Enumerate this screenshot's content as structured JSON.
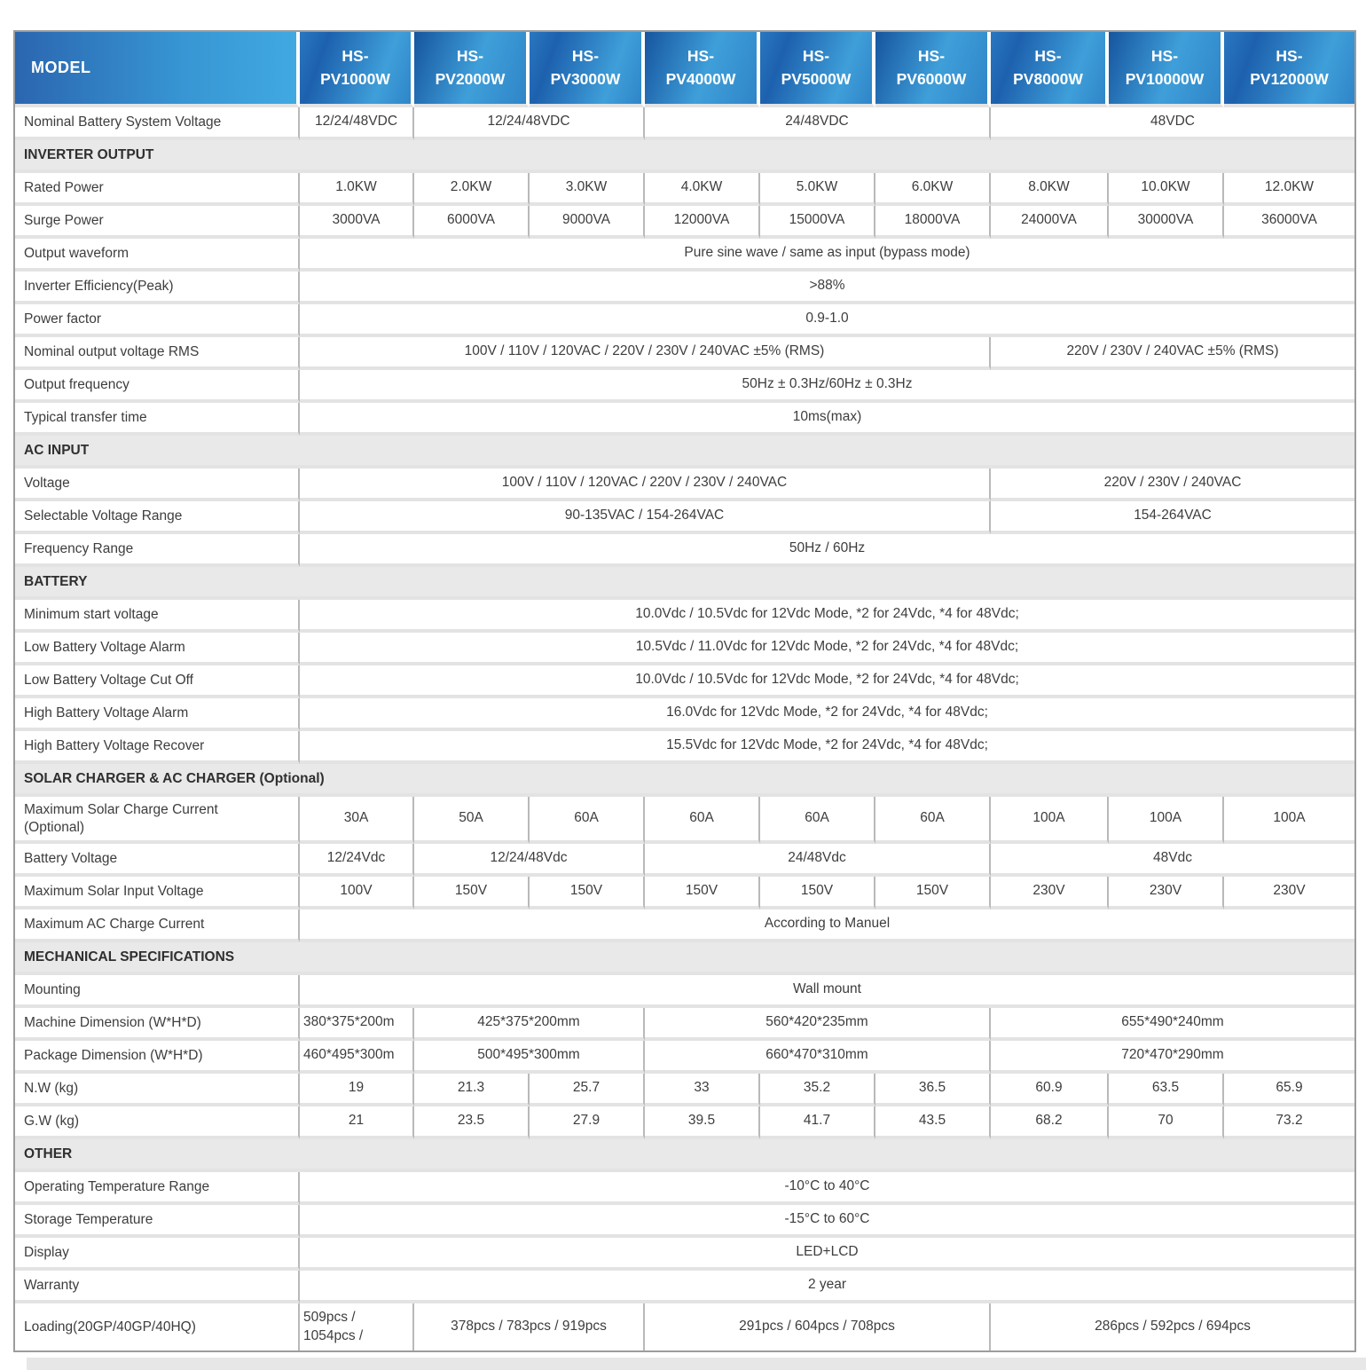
{
  "table": {
    "model_header": "MODEL",
    "models": [
      "HS-\nPV1000W",
      "HS-\nPV2000W",
      "HS-\nPV3000W",
      "HS-\nPV4000W",
      "HS-\nPV5000W",
      "HS-\nPV6000W",
      "HS-\nPV8000W",
      "HS-\nPV10000W",
      "HS-\nPV12000W"
    ],
    "rows": [
      {
        "type": "data",
        "label": "Nominal Battery System Voltage",
        "cells": [
          {
            "text": "12/24/48VDC",
            "span": 1
          },
          {
            "text": "12/24/48VDC",
            "span": 2
          },
          {
            "text": "24/48VDC",
            "span": 3
          },
          {
            "text": "48VDC",
            "span": 3
          }
        ]
      },
      {
        "type": "section",
        "label": "INVERTER OUTPUT"
      },
      {
        "type": "data",
        "label": "Rated Power",
        "cells": [
          {
            "text": "1.0KW",
            "span": 1
          },
          {
            "text": "2.0KW",
            "span": 1
          },
          {
            "text": "3.0KW",
            "span": 1
          },
          {
            "text": "4.0KW",
            "span": 1
          },
          {
            "text": "5.0KW",
            "span": 1
          },
          {
            "text": "6.0KW",
            "span": 1
          },
          {
            "text": "8.0KW",
            "span": 1
          },
          {
            "text": "10.0KW",
            "span": 1
          },
          {
            "text": "12.0KW",
            "span": 1
          }
        ]
      },
      {
        "type": "data",
        "label": "Surge Power",
        "cells": [
          {
            "text": "3000VA",
            "span": 1
          },
          {
            "text": "6000VA",
            "span": 1
          },
          {
            "text": "9000VA",
            "span": 1
          },
          {
            "text": "12000VA",
            "span": 1
          },
          {
            "text": "15000VA",
            "span": 1
          },
          {
            "text": "18000VA",
            "span": 1
          },
          {
            "text": "24000VA",
            "span": 1
          },
          {
            "text": "30000VA",
            "span": 1
          },
          {
            "text": "36000VA",
            "span": 1
          }
        ]
      },
      {
        "type": "data",
        "label": "Output waveform",
        "cells": [
          {
            "text": "Pure sine wave / same as input (bypass mode)",
            "span": 9
          }
        ]
      },
      {
        "type": "data",
        "label": "Inverter Efficiency(Peak)",
        "cells": [
          {
            "text": ">88%",
            "span": 9
          }
        ]
      },
      {
        "type": "data",
        "label": "Power factor",
        "cells": [
          {
            "text": "0.9-1.0",
            "span": 9
          }
        ]
      },
      {
        "type": "data",
        "label": "Nominal output voltage RMS",
        "cells": [
          {
            "text": "100V / 110V / 120VAC  /  220V / 230V / 240VAC ±5% (RMS)",
            "span": 6
          },
          {
            "text": "220V / 230V / 240VAC ±5% (RMS)",
            "span": 3
          }
        ]
      },
      {
        "type": "data",
        "label": "Output frequency",
        "cells": [
          {
            "text": "50Hz ± 0.3Hz/60Hz ± 0.3Hz",
            "span": 9
          }
        ]
      },
      {
        "type": "data",
        "label": "Typical transfer time",
        "cells": [
          {
            "text": "10ms(max)",
            "span": 9
          }
        ]
      },
      {
        "type": "section",
        "label": "AC INPUT"
      },
      {
        "type": "data",
        "label": "Voltage",
        "cells": [
          {
            "text": "100V / 110V / 120VAC  /  220V / 230V / 240VAC",
            "span": 6
          },
          {
            "text": "220V / 230V / 240VAC",
            "span": 3
          }
        ]
      },
      {
        "type": "data",
        "label": "Selectable Voltage Range",
        "cells": [
          {
            "text": "90-135VAC  /  154-264VAC",
            "span": 6
          },
          {
            "text": "154-264VAC",
            "span": 3
          }
        ]
      },
      {
        "type": "data",
        "label": "Frequency Range",
        "cells": [
          {
            "text": "50Hz / 60Hz",
            "span": 9
          }
        ]
      },
      {
        "type": "section",
        "label": "BATTERY"
      },
      {
        "type": "data",
        "label": "Minimum start voltage",
        "cells": [
          {
            "text": "10.0Vdc / 10.5Vdc for 12Vdc Mode, *2 for 24Vdc, *4 for 48Vdc;",
            "span": 9
          }
        ]
      },
      {
        "type": "data",
        "label": "Low Battery Voltage Alarm",
        "cells": [
          {
            "text": "10.5Vdc / 11.0Vdc for 12Vdc Mode, *2 for 24Vdc, *4 for 48Vdc;",
            "span": 9
          }
        ]
      },
      {
        "type": "data",
        "label": "Low Battery Voltage Cut Off",
        "cells": [
          {
            "text": "10.0Vdc / 10.5Vdc for 12Vdc Mode, *2 for 24Vdc, *4 for 48Vdc;",
            "span": 9
          }
        ]
      },
      {
        "type": "data",
        "label": "High Battery Voltage Alarm",
        "cells": [
          {
            "text": "16.0Vdc for 12Vdc Mode, *2 for 24Vdc, *4 for 48Vdc;",
            "span": 9
          }
        ]
      },
      {
        "type": "data",
        "label": "High  Battery Voltage Recover",
        "cells": [
          {
            "text": "15.5Vdc for 12Vdc Mode, *2 for 24Vdc, *4 for 48Vdc;",
            "span": 9
          }
        ]
      },
      {
        "type": "section",
        "label": "SOLAR CHARGER & AC CHARGER (Optional)"
      },
      {
        "type": "data",
        "tall": true,
        "label": "Maximum Solar Charge Current\n(Optional)",
        "cells": [
          {
            "text": "30A",
            "span": 1
          },
          {
            "text": "50A",
            "span": 1
          },
          {
            "text": "60A",
            "span": 1
          },
          {
            "text": "60A",
            "span": 1
          },
          {
            "text": "60A",
            "span": 1
          },
          {
            "text": "60A",
            "span": 1
          },
          {
            "text": "100A",
            "span": 1
          },
          {
            "text": "100A",
            "span": 1
          },
          {
            "text": "100A",
            "span": 1
          }
        ]
      },
      {
        "type": "data",
        "label": "Battery Voltage",
        "cells": [
          {
            "text": "12/24Vdc",
            "span": 1
          },
          {
            "text": "12/24/48Vdc",
            "span": 2
          },
          {
            "text": "24/48Vdc",
            "span": 3
          },
          {
            "text": "48Vdc",
            "span": 3
          }
        ]
      },
      {
        "type": "data",
        "label": "Maximum Solar Input Voltage",
        "cells": [
          {
            "text": "100V",
            "span": 1
          },
          {
            "text": "150V",
            "span": 1
          },
          {
            "text": "150V",
            "span": 1
          },
          {
            "text": "150V",
            "span": 1
          },
          {
            "text": "150V",
            "span": 1
          },
          {
            "text": "150V",
            "span": 1
          },
          {
            "text": "230V",
            "span": 1
          },
          {
            "text": "230V",
            "span": 1
          },
          {
            "text": "230V",
            "span": 1
          }
        ]
      },
      {
        "type": "data",
        "label": "Maximum AC Charge Current",
        "cells": [
          {
            "text": "According to Manuel",
            "span": 9
          }
        ]
      },
      {
        "type": "section",
        "label": "MECHANICAL SPECIFICATIONS"
      },
      {
        "type": "data",
        "label": "Mounting",
        "cells": [
          {
            "text": "Wall mount",
            "span": 9
          }
        ]
      },
      {
        "type": "data",
        "label": "Machine Dimension (W*H*D)",
        "cells": [
          {
            "text": "380*375*200m",
            "span": 1,
            "align": "left"
          },
          {
            "text": "425*375*200mm",
            "span": 2
          },
          {
            "text": "560*420*235mm",
            "span": 3
          },
          {
            "text": "655*490*240mm",
            "span": 3
          }
        ]
      },
      {
        "type": "data",
        "label": "Package Dimension (W*H*D)",
        "cells": [
          {
            "text": "460*495*300m",
            "span": 1,
            "align": "left"
          },
          {
            "text": "500*495*300mm",
            "span": 2
          },
          {
            "text": "660*470*310mm",
            "span": 3
          },
          {
            "text": "720*470*290mm",
            "span": 3
          }
        ]
      },
      {
        "type": "data",
        "label": "N.W (kg)",
        "cells": [
          {
            "text": "19",
            "span": 1
          },
          {
            "text": "21.3",
            "span": 1
          },
          {
            "text": "25.7",
            "span": 1
          },
          {
            "text": "33",
            "span": 1
          },
          {
            "text": "35.2",
            "span": 1
          },
          {
            "text": "36.5",
            "span": 1
          },
          {
            "text": "60.9",
            "span": 1
          },
          {
            "text": "63.5",
            "span": 1
          },
          {
            "text": "65.9",
            "span": 1
          }
        ]
      },
      {
        "type": "data",
        "label": "G.W (kg)",
        "cells": [
          {
            "text": "21",
            "span": 1
          },
          {
            "text": "23.5",
            "span": 1
          },
          {
            "text": "27.9",
            "span": 1
          },
          {
            "text": "39.5",
            "span": 1
          },
          {
            "text": "41.7",
            "span": 1
          },
          {
            "text": "43.5",
            "span": 1
          },
          {
            "text": "68.2",
            "span": 1
          },
          {
            "text": "70",
            "span": 1
          },
          {
            "text": "73.2",
            "span": 1
          }
        ]
      },
      {
        "type": "section",
        "label": "OTHER"
      },
      {
        "type": "data",
        "label": "Operating Temperature Range",
        "cells": [
          {
            "text": "-10°C to 40°C",
            "span": 9
          }
        ]
      },
      {
        "type": "data",
        "label": "Storage Temperature",
        "cells": [
          {
            "text": "-15°C to 60°C",
            "span": 9
          }
        ]
      },
      {
        "type": "data",
        "label": "Display",
        "cells": [
          {
            "text": "LED+LCD",
            "span": 9
          }
        ]
      },
      {
        "type": "data",
        "label": "Warranty",
        "cells": [
          {
            "text": "2 year",
            "span": 9
          }
        ]
      },
      {
        "type": "data",
        "tall": true,
        "label": "Loading(20GP/40GP/40HQ)",
        "cells": [
          {
            "text": "509pcs /\n1054pcs /",
            "span": 1,
            "align": "left"
          },
          {
            "text": "378pcs / 783pcs / 919pcs",
            "span": 2
          },
          {
            "text": "291pcs / 604pcs / 708pcs",
            "span": 3
          },
          {
            "text": "286pcs / 592pcs / 694pcs",
            "span": 3
          }
        ]
      }
    ]
  },
  "colors": {
    "header_blue_dark": "#1d61ae",
    "header_blue_mid": "#2f85c8",
    "header_blue_light": "#3f9fd9",
    "section_bg": "#e9e9e9",
    "row_gap": "#e3e3e3",
    "vertical_line": "#b9b9b9",
    "outer_border": "#9c9c9c",
    "text": "#3d3d3d"
  }
}
